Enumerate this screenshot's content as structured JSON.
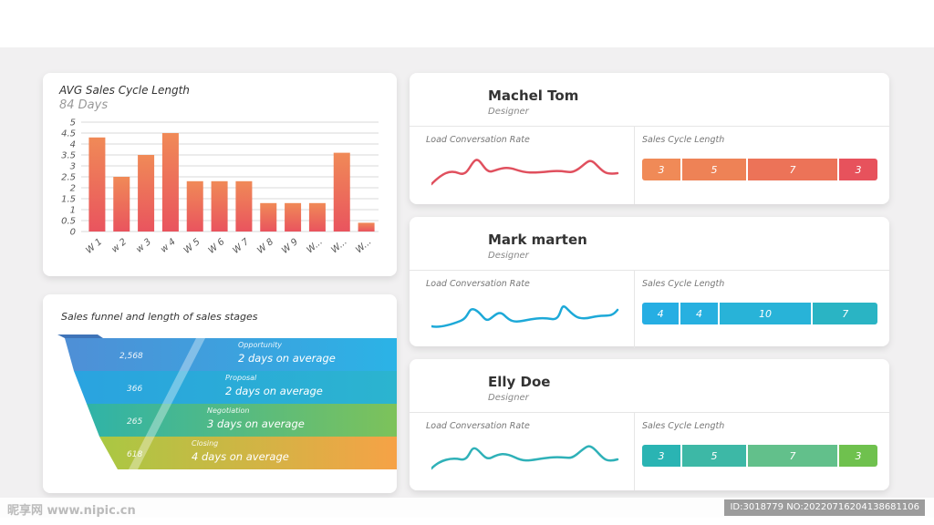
{
  "bar_card": {
    "title": "AVG Sales Cycle Length",
    "subtitle": "84 Days"
  },
  "chart_data": {
    "type": "bar",
    "categories": [
      "W 1",
      "w 2",
      "w 3",
      "w 4",
      "W 5",
      "W 6",
      "W 7",
      "W 8",
      "W 9",
      "W...",
      "W...",
      "W..."
    ],
    "values": [
      4.3,
      2.5,
      3.5,
      4.5,
      2.3,
      2.3,
      2.3,
      1.3,
      1.3,
      1.3,
      3.6,
      0.4
    ],
    "yticks": [
      "5",
      "4.5",
      "4",
      "3.5",
      "3",
      "2.5",
      "2",
      "1.5",
      "1",
      "0.5",
      "0"
    ],
    "ylim": [
      0,
      5
    ],
    "grid": true,
    "colors": {
      "top": "#f08a57",
      "bottom": "#e9545e"
    }
  },
  "funnel": {
    "title": "Sales funnel and length of sales stages",
    "stages": [
      {
        "count": "2,568",
        "name": "Opportunity",
        "duration": "2 days on average",
        "color": "#2bb3e6"
      },
      {
        "count": "366",
        "name": "Proposal",
        "duration": "2 days on average",
        "color": "#2bb0d8"
      },
      {
        "count": "265",
        "name": "Negotiation",
        "duration": "3 days on average",
        "color": "#5dc07a"
      },
      {
        "count": "618",
        "name": "Closing",
        "duration": "4 days on average",
        "color": "#f4a845"
      }
    ]
  },
  "people": [
    {
      "name": "Machel Tom",
      "role": "Designer",
      "load_label": "Load Conversation Rate",
      "cycle_label": "Sales Cycle Length",
      "line_color": "#e0505e",
      "segments": [
        {
          "value": 3,
          "label": "3",
          "color": "#f08a57"
        },
        {
          "value": 5,
          "label": "5",
          "color": "#ee8256"
        },
        {
          "value": 7,
          "label": "7",
          "color": "#ec7358"
        },
        {
          "value": 3,
          "label": "3",
          "color": "#e7525c"
        }
      ]
    },
    {
      "name": "Mark marten",
      "role": "Designer",
      "load_label": "Load Conversation Rate",
      "cycle_label": "Sales Cycle Length",
      "line_color": "#1da9d8",
      "segments": [
        {
          "value": 4,
          "label": "4",
          "color": "#26aee3"
        },
        {
          "value": 4,
          "label": "4",
          "color": "#27b0e0"
        },
        {
          "value": 10,
          "label": "10",
          "color": "#28b3d8"
        },
        {
          "value": 7,
          "label": "7",
          "color": "#2ab4c4"
        }
      ]
    },
    {
      "name": "Elly Doe",
      "role": "Designer",
      "load_label": "Load Conversation Rate",
      "cycle_label": "Sales Cycle Length",
      "line_color": "#2fb1b8",
      "segments": [
        {
          "value": 3,
          "label": "3",
          "color": "#2ab4b3"
        },
        {
          "value": 5,
          "label": "5",
          "color": "#3db8a6"
        },
        {
          "value": 7,
          "label": "7",
          "color": "#62c08b"
        },
        {
          "value": 3,
          "label": "3",
          "color": "#6fc14e"
        }
      ]
    }
  ],
  "watermark": {
    "left": "昵享网 www.nipic.cn",
    "right": "ID:3018779 NO:20220716204138681106"
  }
}
